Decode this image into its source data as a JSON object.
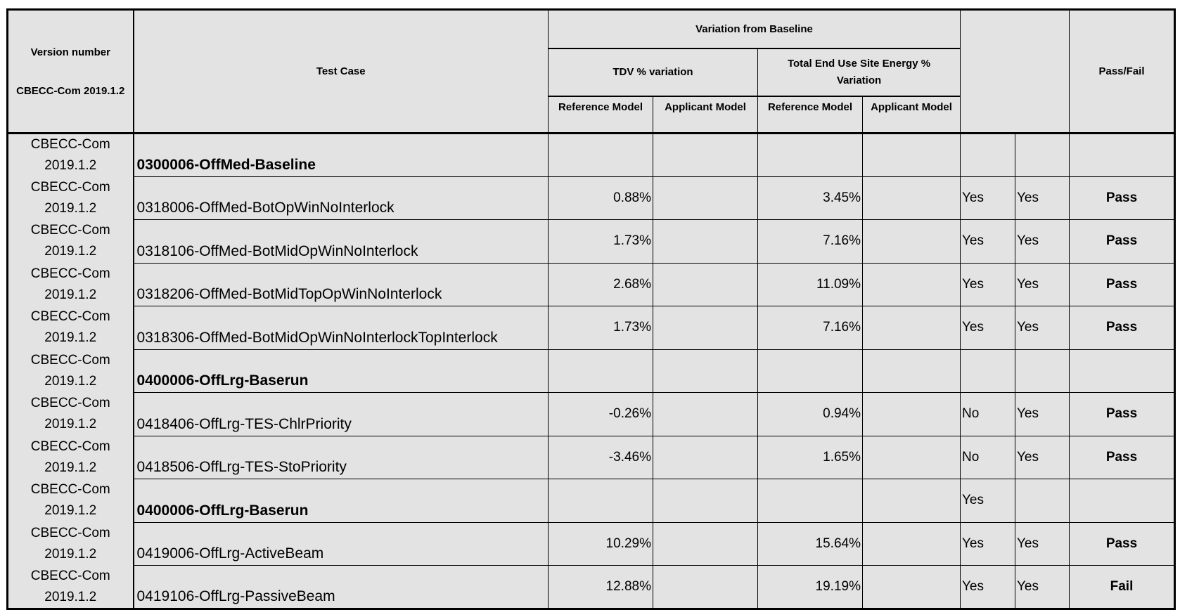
{
  "header": {
    "version_label": "Version number",
    "version_value": "CBECC-Com 2019.1.2",
    "test_case": "Test Case",
    "variation": "Variation from Baseline",
    "tdv": "TDV % variation",
    "site_energy": "Total End Use Site Energy % Variation",
    "ref_model": "Reference Model",
    "app_model": "Applicant Model",
    "pass_fail": "Pass/Fail"
  },
  "rows": [
    {
      "v1": "CBECC-Com",
      "v2": "2019.1.2",
      "case": "0300006-OffMed-Baseline",
      "bold": true,
      "tdv": "",
      "site": "",
      "c1": "",
      "c2": "",
      "pf": ""
    },
    {
      "v1": "CBECC-Com",
      "v2": "2019.1.2",
      "case": "0318006-OffMed-BotOpWinNoInterlock",
      "bold": false,
      "tdv": "0.88%",
      "site": "3.45%",
      "c1": "Yes",
      "c2": "Yes",
      "pf": "Pass"
    },
    {
      "v1": "CBECC-Com",
      "v2": "2019.1.2",
      "case": "0318106-OffMed-BotMidOpWinNoInterlock",
      "bold": false,
      "tdv": "1.73%",
      "site": "7.16%",
      "c1": "Yes",
      "c2": "Yes",
      "pf": "Pass"
    },
    {
      "v1": "CBECC-Com",
      "v2": "2019.1.2",
      "case": "0318206-OffMed-BotMidTopOpWinNoInterlock",
      "bold": false,
      "tdv": "2.68%",
      "site": "11.09%",
      "c1": "Yes",
      "c2": "Yes",
      "pf": "Pass"
    },
    {
      "v1": "CBECC-Com",
      "v2": "2019.1.2",
      "case": "0318306-OffMed-BotMidOpWinNoInterlockTopInterlock",
      "bold": false,
      "tdv": "1.73%",
      "site": "7.16%",
      "c1": "Yes",
      "c2": "Yes",
      "pf": "Pass"
    },
    {
      "v1": "CBECC-Com",
      "v2": "2019.1.2",
      "case": "0400006-OffLrg-Baserun",
      "bold": true,
      "tdv": "",
      "site": "",
      "c1": "",
      "c2": "",
      "pf": ""
    },
    {
      "v1": "CBECC-Com",
      "v2": "2019.1.2",
      "case": "0418406-OffLrg-TES-ChlrPriority",
      "bold": false,
      "tdv": "-0.26%",
      "site": "0.94%",
      "c1": "No",
      "c2": "Yes",
      "pf": "Pass"
    },
    {
      "v1": "CBECC-Com",
      "v2": "2019.1.2",
      "case": "0418506-OffLrg-TES-StoPriority",
      "bold": false,
      "tdv": "-3.46%",
      "site": "1.65%",
      "c1": "No",
      "c2": "Yes",
      "pf": "Pass"
    },
    {
      "v1": "CBECC-Com",
      "v2": "2019.1.2",
      "case": "0400006-OffLrg-Baserun",
      "bold": true,
      "tdv": "",
      "site": "",
      "c1": "Yes",
      "c2": "",
      "pf": ""
    },
    {
      "v1": "CBECC-Com",
      "v2": "2019.1.2",
      "case": "0419006-OffLrg-ActiveBeam",
      "bold": false,
      "tdv": "10.29%",
      "site": "15.64%",
      "c1": "Yes",
      "c2": "Yes",
      "pf": "Pass"
    },
    {
      "v1": "CBECC-Com",
      "v2": "2019.1.2",
      "case": "0419106-OffLrg-PassiveBeam",
      "bold": false,
      "tdv": "12.88%",
      "site": "19.19%",
      "c1": "Yes",
      "c2": "Yes",
      "pf": "Fail"
    }
  ]
}
